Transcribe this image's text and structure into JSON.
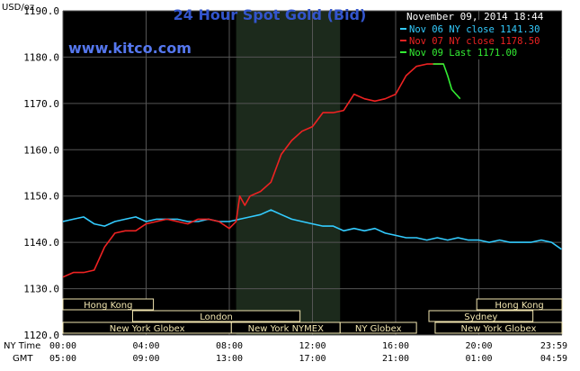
{
  "chart_data": {
    "type": "line",
    "title": "24 Hour Spot Gold (Bid)",
    "watermark": "www.kitco.com",
    "unit_label": "USD/oz",
    "timestamp": "November 09, 2014 18:44",
    "ylim": [
      1120,
      1190
    ],
    "yticks": [
      "1190.0",
      "1180.0",
      "1170.0",
      "1160.0",
      "1150.0",
      "1140.0",
      "1130.0",
      "1120.0"
    ],
    "ytick_values": [
      1190,
      1180,
      1170,
      1160,
      1150,
      1140,
      1130,
      1120
    ],
    "xlim": [
      0,
      24
    ],
    "x_row_labels": {
      "ny": "NY Time",
      "gmt": "GMT"
    },
    "x_ticks_ny": [
      "00:00",
      "04:00",
      "08:00",
      "12:00",
      "16:00",
      "20:00",
      "23:59"
    ],
    "x_ticks_gmt": [
      "05:00",
      "09:00",
      "13:00",
      "17:00",
      "21:00",
      "01:00",
      "04:59"
    ],
    "x_tick_hours": [
      0,
      4,
      8,
      12,
      16,
      20,
      23.983
    ],
    "shaded_region": [
      8.33,
      13.33
    ],
    "legend": [
      {
        "label": "Nov 06 NY close 1141.30",
        "color": "#33ccff"
      },
      {
        "label": "Nov 07 NY close 1178.50",
        "color": "#ee2222"
      },
      {
        "label": "Nov 09 Last 1171.00",
        "color": "#33ee33"
      }
    ],
    "series": [
      {
        "name": "Nov 06 NY close 1141.30",
        "color": "#33ccff",
        "x": [
          0,
          0.5,
          1,
          1.5,
          2,
          2.5,
          3,
          3.5,
          4,
          4.5,
          5,
          5.5,
          6,
          6.5,
          7,
          7.5,
          8,
          8.5,
          9,
          9.5,
          10,
          10.5,
          11,
          11.5,
          12,
          12.5,
          13,
          13.5,
          14,
          14.5,
          15,
          15.5,
          16,
          16.5,
          17,
          17.5,
          18,
          18.5,
          19,
          19.5,
          20,
          20.5,
          21,
          21.5,
          22,
          22.5,
          23,
          23.5,
          23.98
        ],
        "values": [
          1144.5,
          1145,
          1145.5,
          1144,
          1143.5,
          1144.5,
          1145,
          1145.5,
          1144.5,
          1145,
          1145,
          1145,
          1144.5,
          1144.5,
          1145,
          1144.5,
          1144.5,
          1145,
          1145.5,
          1146,
          1147,
          1146,
          1145,
          1144.5,
          1144,
          1143.5,
          1143.5,
          1142.5,
          1143,
          1142.5,
          1143,
          1142,
          1141.5,
          1141,
          1141,
          1140.5,
          1141,
          1140.5,
          1141,
          1140.5,
          1140.5,
          1140,
          1140.5,
          1140,
          1140,
          1140,
          1140.5,
          1140,
          1138.5
        ]
      },
      {
        "name": "Nov 07 NY close 1178.50",
        "color": "#ee2222",
        "x": [
          0,
          0.5,
          1,
          1.5,
          2,
          2.5,
          3,
          3.5,
          4,
          4.5,
          5,
          5.5,
          6,
          6.5,
          7,
          7.5,
          8,
          8.33,
          8.5,
          8.75,
          9,
          9.5,
          10,
          10.5,
          11,
          11.5,
          12,
          12.5,
          13,
          13.5,
          14,
          14.5,
          15,
          15.5,
          16,
          16.5,
          17,
          17.5,
          18,
          18.3
        ],
        "values": [
          1132.5,
          1133.5,
          1133.5,
          1134,
          1139,
          1142,
          1142.5,
          1142.5,
          1144,
          1144.5,
          1145,
          1144.5,
          1144,
          1145,
          1145,
          1144.5,
          1143,
          1144.5,
          1150,
          1148,
          1150,
          1151,
          1153,
          1159,
          1162,
          1164,
          1165,
          1168,
          1168,
          1168.5,
          1172,
          1171,
          1170.5,
          1171,
          1172,
          1176,
          1178,
          1178.5,
          1178.5,
          1178.5
        ]
      },
      {
        "name": "Nov 09 Last 1171.00",
        "color": "#33ee33",
        "x": [
          17.8,
          18,
          18.3,
          18.5,
          18.7,
          18.9,
          19.1
        ],
        "values": [
          1178.5,
          1178.5,
          1178.5,
          1176,
          1173,
          1172,
          1171
        ]
      }
    ],
    "sessions": [
      {
        "label": "Hong Kong",
        "start": 0,
        "end": 4.35
      },
      {
        "label": "London",
        "start": 3.35,
        "end": 11.4
      },
      {
        "label": "New York Globex",
        "start": 0,
        "end": 8.1
      },
      {
        "label": "New York NYMEX",
        "start": 8.1,
        "end": 13.33
      },
      {
        "label": "NY Globex",
        "start": 13.33,
        "end": 17.0
      },
      {
        "label": "Hong Kong",
        "start": 19.9,
        "end": 24
      },
      {
        "label": "Sydney",
        "start": 17.6,
        "end": 22.6
      },
      {
        "label": "New York Globex",
        "start": 17.9,
        "end": 24
      }
    ]
  }
}
